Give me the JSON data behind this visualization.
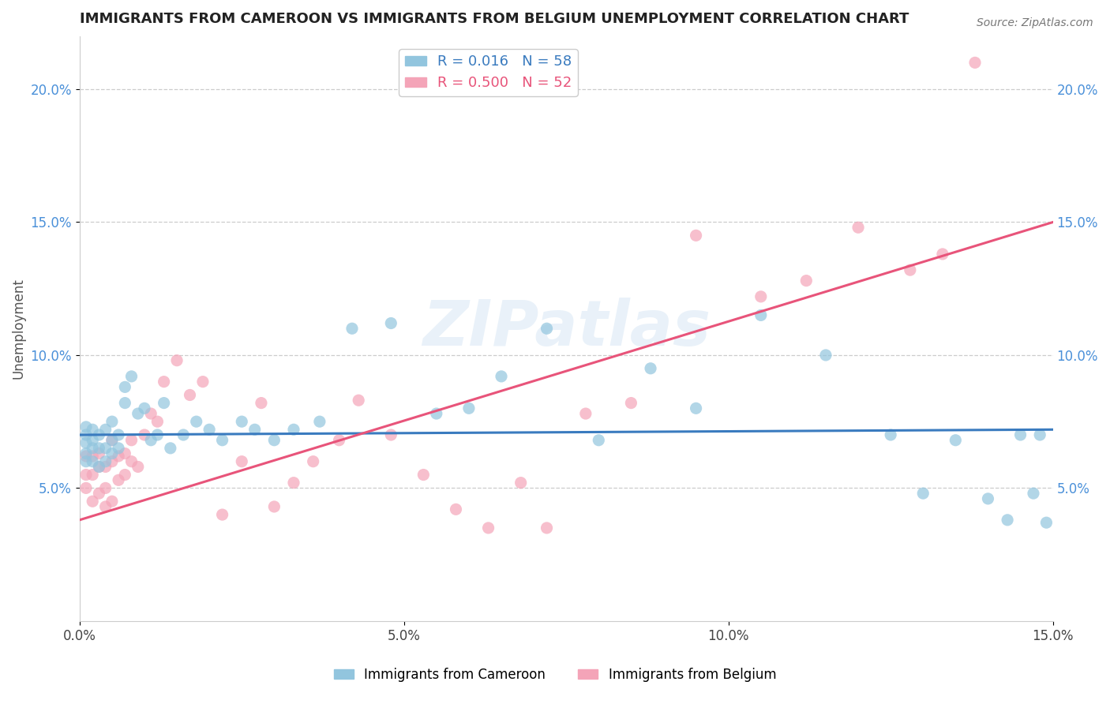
{
  "title": "IMMIGRANTS FROM CAMEROON VS IMMIGRANTS FROM BELGIUM UNEMPLOYMENT CORRELATION CHART",
  "source_text": "Source: ZipAtlas.com",
  "ylabel": "Unemployment",
  "x_min": 0.0,
  "x_max": 0.15,
  "y_min": 0.0,
  "y_max": 0.22,
  "x_ticks": [
    0.0,
    0.05,
    0.1,
    0.15
  ],
  "x_tick_labels": [
    "0.0%",
    "5.0%",
    "10.0%",
    "15.0%"
  ],
  "y_ticks": [
    0.05,
    0.1,
    0.15,
    0.2
  ],
  "y_tick_labels": [
    "5.0%",
    "10.0%",
    "15.0%",
    "20.0%"
  ],
  "blue_color": "#92c5de",
  "pink_color": "#f4a4b8",
  "blue_line_color": "#3a7bbf",
  "pink_line_color": "#e8547a",
  "blue_R": 0.016,
  "blue_N": 58,
  "pink_R": 0.5,
  "pink_N": 52,
  "blue_label": "Immigrants from Cameroon",
  "pink_label": "Immigrants from Belgium",
  "title_fontsize": 13,
  "tick_fontsize": 12,
  "legend_fontsize": 13,
  "blue_line_y0": 0.07,
  "blue_line_y1": 0.072,
  "pink_line_y0": 0.038,
  "pink_line_y1": 0.15,
  "blue_scatter_x": [
    0.001,
    0.001,
    0.001,
    0.001,
    0.001,
    0.002,
    0.002,
    0.002,
    0.002,
    0.003,
    0.003,
    0.003,
    0.004,
    0.004,
    0.004,
    0.005,
    0.005,
    0.005,
    0.006,
    0.006,
    0.007,
    0.007,
    0.008,
    0.009,
    0.01,
    0.011,
    0.012,
    0.013,
    0.014,
    0.016,
    0.018,
    0.02,
    0.022,
    0.025,
    0.027,
    0.03,
    0.033,
    0.037,
    0.042,
    0.048,
    0.055,
    0.06,
    0.065,
    0.072,
    0.08,
    0.088,
    0.095,
    0.105,
    0.115,
    0.125,
    0.13,
    0.135,
    0.14,
    0.143,
    0.145,
    0.147,
    0.148,
    0.149
  ],
  "blue_scatter_y": [
    0.06,
    0.063,
    0.067,
    0.07,
    0.073,
    0.06,
    0.065,
    0.068,
    0.072,
    0.058,
    0.065,
    0.07,
    0.06,
    0.065,
    0.072,
    0.063,
    0.068,
    0.075,
    0.065,
    0.07,
    0.082,
    0.088,
    0.092,
    0.078,
    0.08,
    0.068,
    0.07,
    0.082,
    0.065,
    0.07,
    0.075,
    0.072,
    0.068,
    0.075,
    0.072,
    0.068,
    0.072,
    0.075,
    0.11,
    0.112,
    0.078,
    0.08,
    0.092,
    0.11,
    0.068,
    0.095,
    0.08,
    0.115,
    0.1,
    0.07,
    0.048,
    0.068,
    0.046,
    0.038,
    0.07,
    0.048,
    0.07,
    0.037
  ],
  "pink_scatter_x": [
    0.001,
    0.001,
    0.001,
    0.002,
    0.002,
    0.002,
    0.003,
    0.003,
    0.003,
    0.004,
    0.004,
    0.004,
    0.005,
    0.005,
    0.005,
    0.006,
    0.006,
    0.007,
    0.007,
    0.008,
    0.008,
    0.009,
    0.01,
    0.011,
    0.012,
    0.013,
    0.015,
    0.017,
    0.019,
    0.022,
    0.025,
    0.028,
    0.03,
    0.033,
    0.036,
    0.04,
    0.043,
    0.048,
    0.053,
    0.058,
    0.063,
    0.068,
    0.072,
    0.078,
    0.085,
    0.095,
    0.105,
    0.112,
    0.12,
    0.128,
    0.133,
    0.138
  ],
  "pink_scatter_y": [
    0.05,
    0.055,
    0.062,
    0.045,
    0.055,
    0.062,
    0.048,
    0.058,
    0.063,
    0.043,
    0.05,
    0.058,
    0.045,
    0.06,
    0.068,
    0.053,
    0.062,
    0.055,
    0.063,
    0.06,
    0.068,
    0.058,
    0.07,
    0.078,
    0.075,
    0.09,
    0.098,
    0.085,
    0.09,
    0.04,
    0.06,
    0.082,
    0.043,
    0.052,
    0.06,
    0.068,
    0.083,
    0.07,
    0.055,
    0.042,
    0.035,
    0.052,
    0.035,
    0.078,
    0.082,
    0.145,
    0.122,
    0.128,
    0.148,
    0.132,
    0.138,
    0.21
  ]
}
